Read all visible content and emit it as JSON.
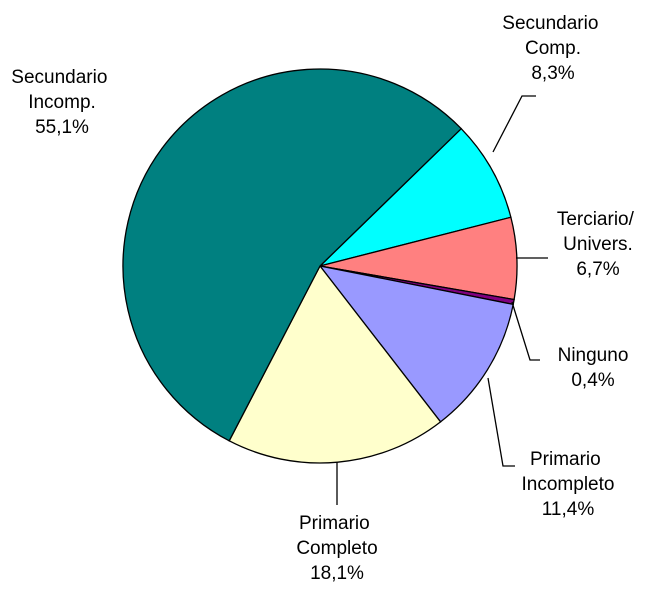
{
  "chart_data": {
    "type": "pie",
    "categories": [
      "Secundario Comp.",
      "Terciario/ Univers.",
      "Ninguno",
      "Primario Incompleto",
      "Primario Completo",
      "Secundario Incomp."
    ],
    "values": [
      8.3,
      6.7,
      0.4,
      11.4,
      18.1,
      55.1
    ],
    "value_labels": [
      "8,3%",
      "6,7%",
      "0,4%",
      "11,4%",
      "18,1%",
      "55,1%"
    ],
    "colors": [
      "#00ffff",
      "#ff8080",
      "#800080",
      "#9999ff",
      "#ffffcc",
      "#008080"
    ]
  }
}
